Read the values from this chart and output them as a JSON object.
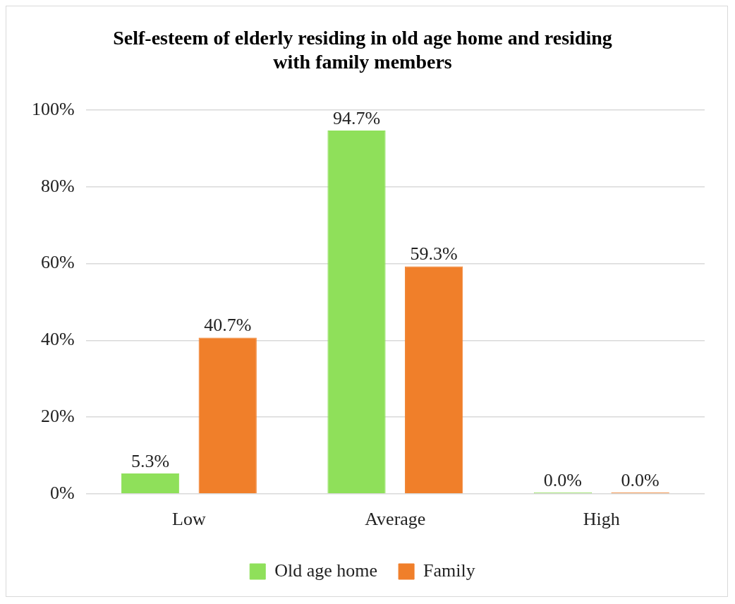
{
  "chart_data": {
    "type": "bar",
    "title": "Self-esteem of elderly residing in old age home and residing with family members",
    "categories": [
      "Low",
      "Average",
      "High"
    ],
    "series": [
      {
        "name": "Old age home",
        "color": "#8fe05a",
        "values": [
          5.3,
          94.7,
          0.0
        ],
        "value_labels": [
          "5.3%",
          "94.7%",
          "0.0%"
        ]
      },
      {
        "name": "Family",
        "color": "#f07f2a",
        "values": [
          40.7,
          59.3,
          0.0
        ],
        "value_labels": [
          "40.7%",
          "59.3%",
          "0.0%"
        ]
      }
    ],
    "ylim": [
      0,
      100
    ],
    "yticks": [
      {
        "value": 0,
        "label": "0%"
      },
      {
        "value": 20,
        "label": "20%"
      },
      {
        "value": 40,
        "label": "40%"
      },
      {
        "value": 60,
        "label": "60%"
      },
      {
        "value": 80,
        "label": "80%"
      },
      {
        "value": 100,
        "label": "100%"
      }
    ],
    "grid": "y",
    "legend": "bottom"
  }
}
